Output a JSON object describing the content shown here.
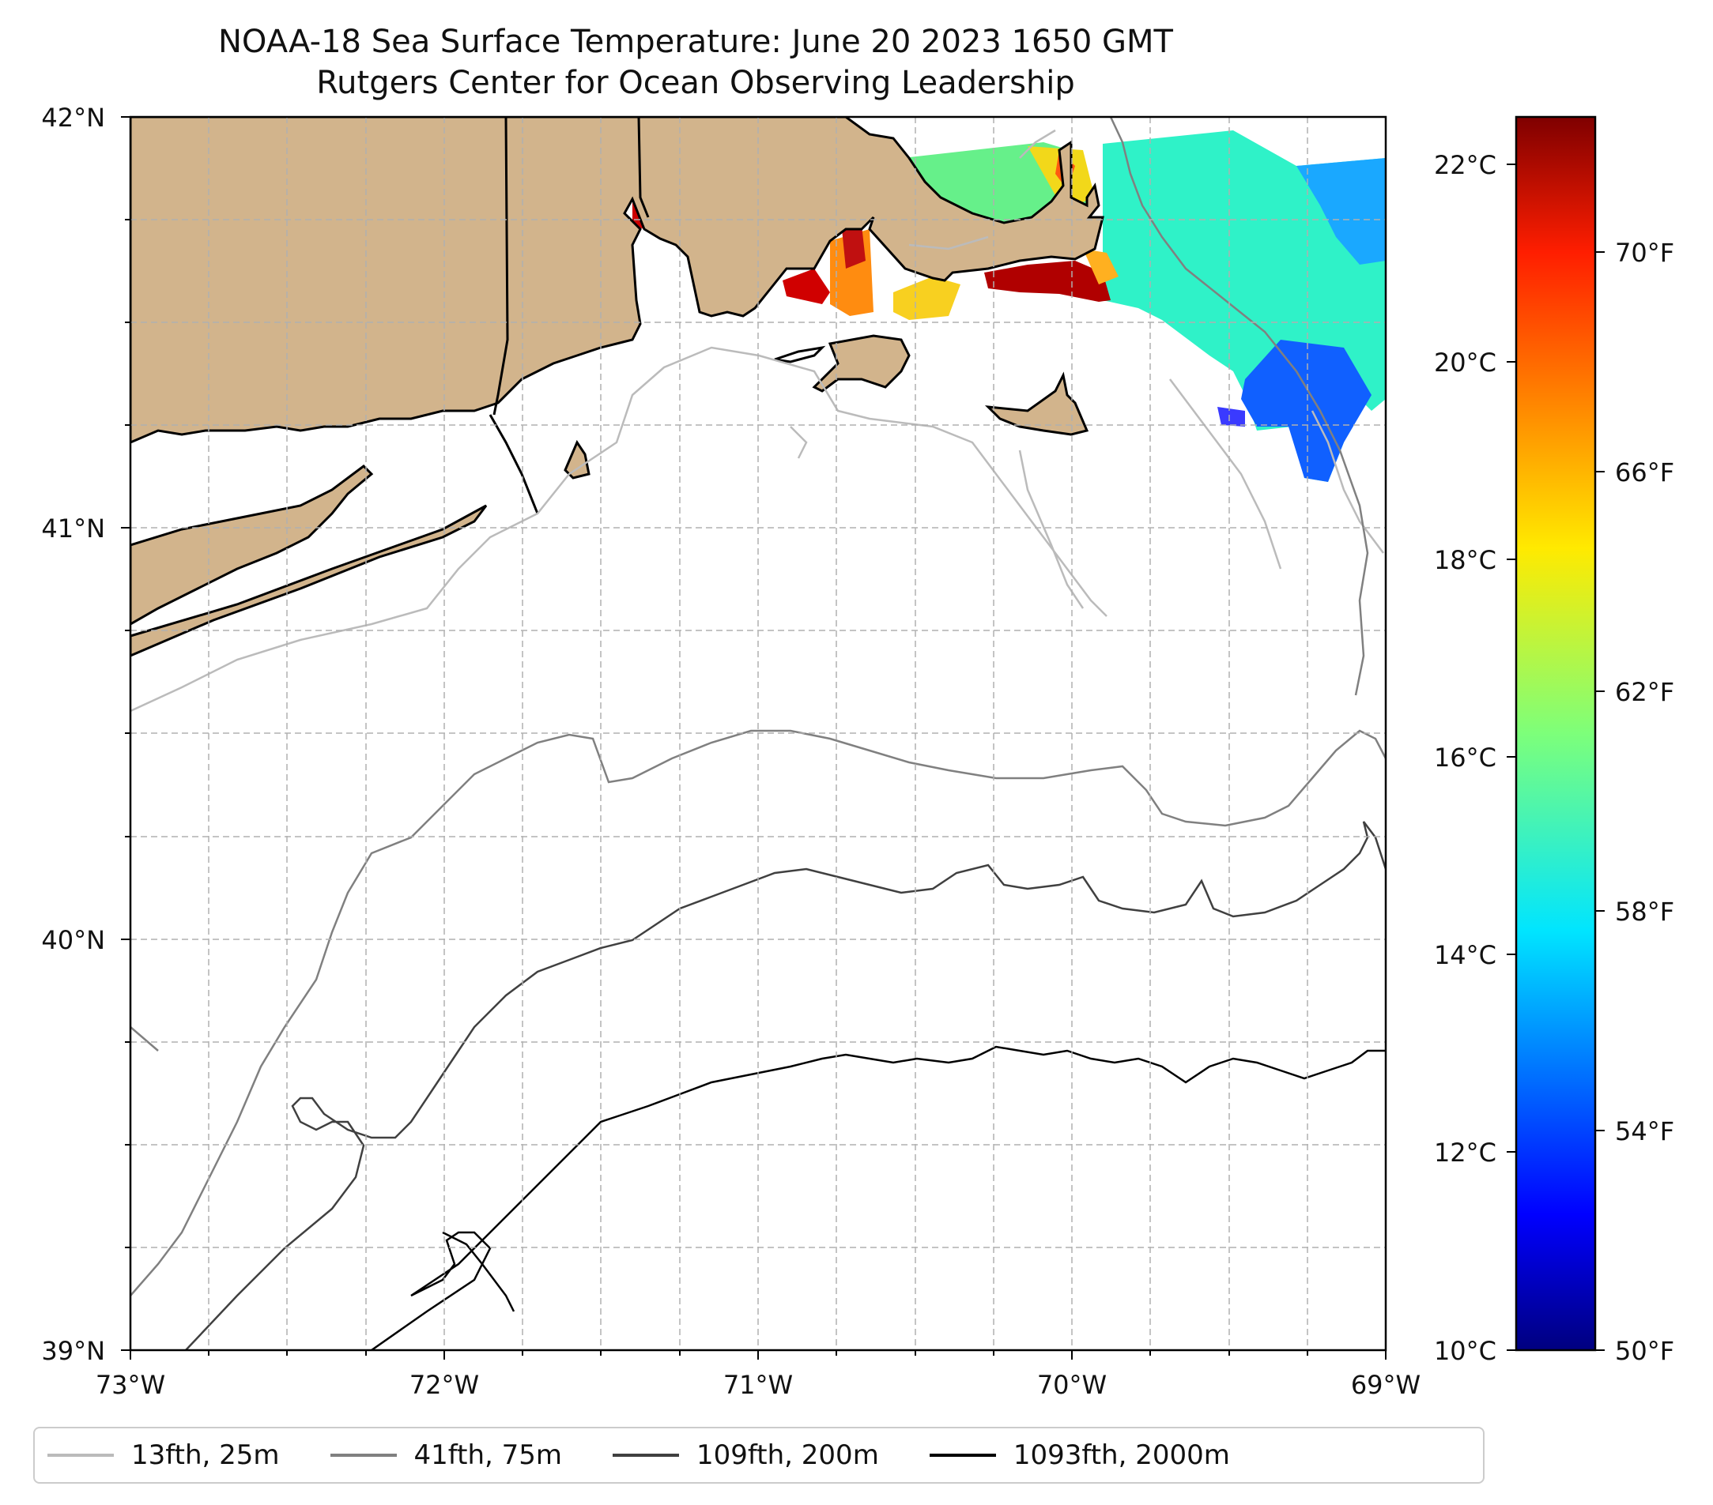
{
  "map": {
    "title": "NOAA-18 Sea Surface Temperature: June 20 2023 1650 GMT",
    "subtitle": "Rutgers Center for Ocean Observing Leadership",
    "lat_ticks": [
      "42°N",
      "41°N",
      "40°N",
      "39°N"
    ],
    "lon_ticks": [
      "73°W",
      "72°W",
      "71°W",
      "70°W",
      "69°W"
    ],
    "land_color": "#d2b48c",
    "extent": {
      "lon": [
        -73,
        -69
      ],
      "lat": [
        39,
        42
      ]
    }
  },
  "colorbar": {
    "celsius_ticks": [
      "22°C",
      "20°C",
      "18°C",
      "16°C",
      "14°C",
      "12°C",
      "10°C"
    ],
    "fahrenheit_ticks": [
      "70°F",
      "66°F",
      "62°F",
      "58°F",
      "54°F",
      "50°F"
    ],
    "range_c": [
      10,
      22.5
    ],
    "colormap": "jet"
  },
  "legend": {
    "items": [
      {
        "label": "13fth, 25m",
        "color": "#bbbbbb"
      },
      {
        "label": "41fth, 75m",
        "color": "#808080"
      },
      {
        "label": "109fth, 200m",
        "color": "#404040"
      },
      {
        "label": "1093fth, 2000m",
        "color": "#000000"
      }
    ]
  }
}
